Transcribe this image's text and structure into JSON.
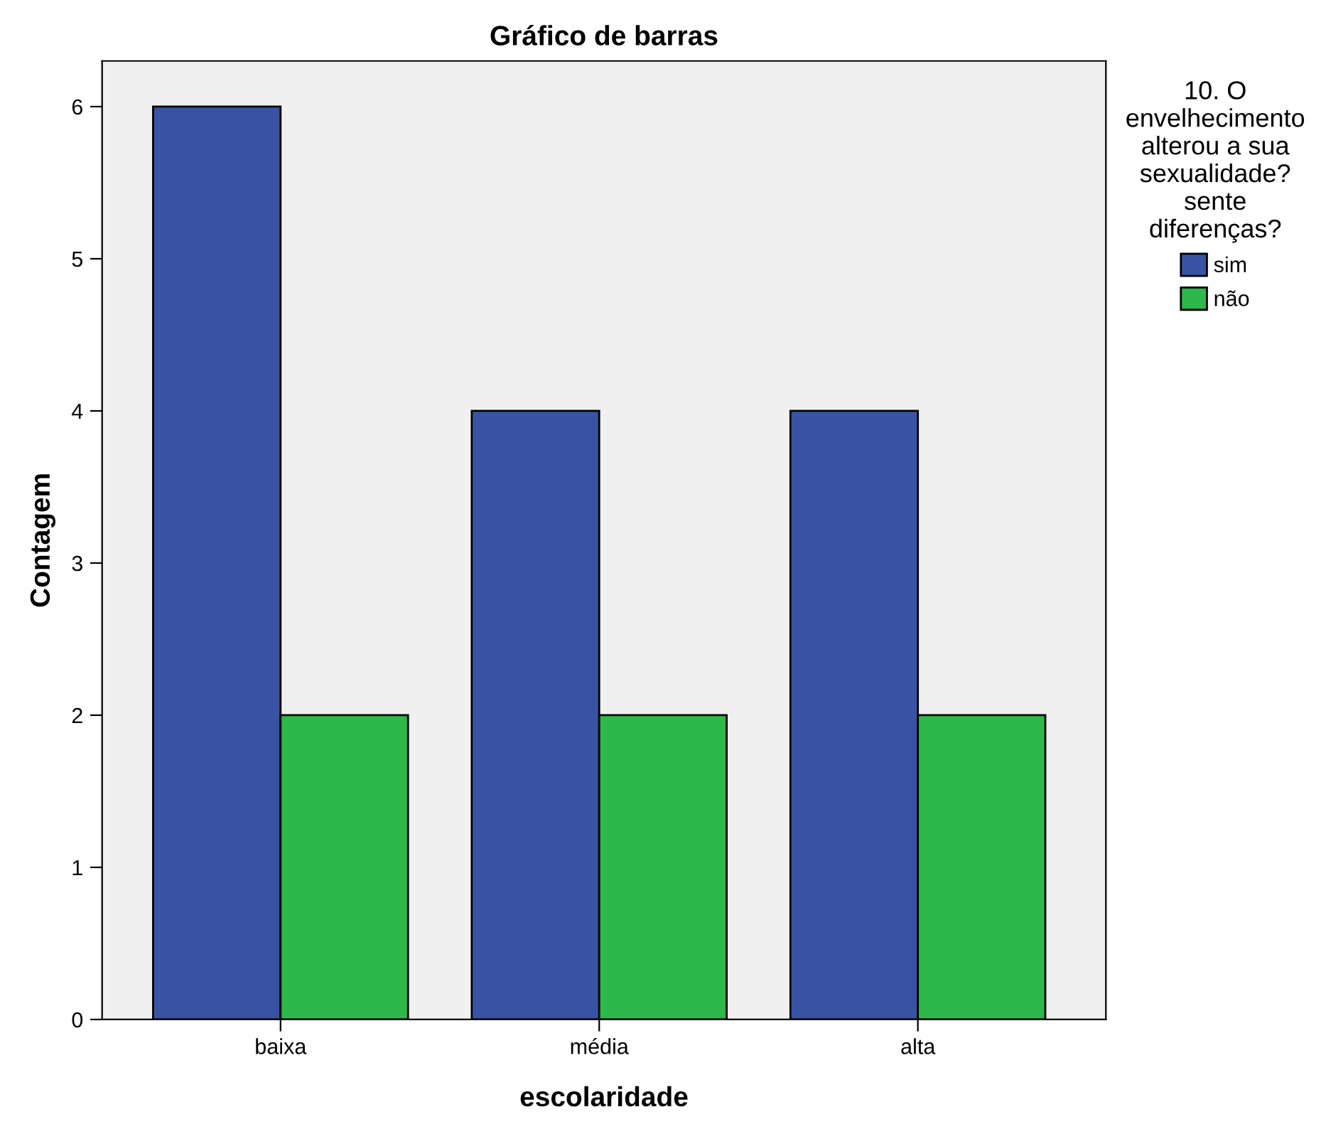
{
  "chart_data": {
    "type": "bar",
    "title": "Gráfico de barras",
    "xlabel": "escolaridade",
    "ylabel": "Contagem",
    "legend_title": "10. O\nenvelhecimento\nalterou a sua\nsexualidade?\nsente\ndiferenças?",
    "categories": [
      "baixa",
      "média",
      "alta"
    ],
    "series": [
      {
        "name": "sim",
        "color": "#3953a4",
        "values": [
          6,
          4,
          4
        ]
      },
      {
        "name": "não",
        "color": "#2db84a",
        "values": [
          2,
          2,
          2
        ]
      }
    ],
    "ylim": [
      0,
      6.3
    ],
    "yticks": [
      0,
      1,
      2,
      3,
      4,
      5,
      6
    ],
    "grid": false,
    "legend": "top right"
  }
}
